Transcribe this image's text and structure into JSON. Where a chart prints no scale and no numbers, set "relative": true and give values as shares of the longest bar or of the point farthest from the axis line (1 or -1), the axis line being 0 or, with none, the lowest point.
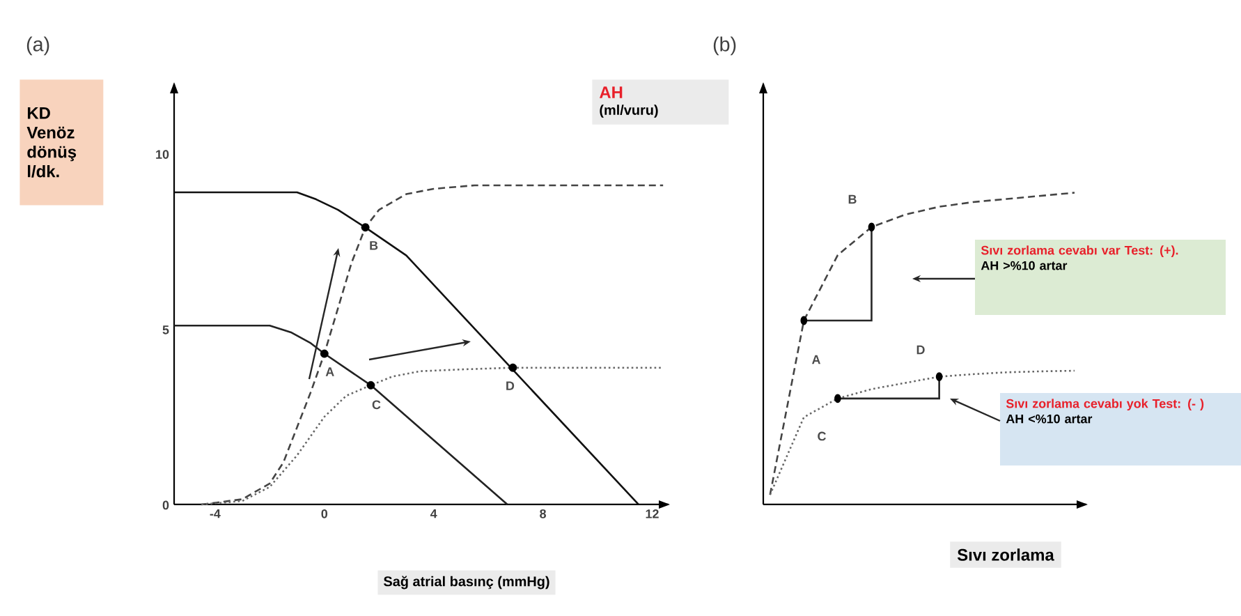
{
  "chart_data": [
    {
      "type": "line",
      "title": "(a)",
      "xlabel": "Sağ atrial basınç (mmHg)",
      "ylabel": "KD Venöz dönüş l/dk.",
      "xlim": [
        -5.5,
        12.6
      ],
      "ylim": [
        0,
        12
      ],
      "xticks": [
        -4,
        0,
        4,
        8,
        12
      ],
      "yticks": [
        0,
        5,
        10
      ],
      "series": [
        {
          "color": "#222222",
          "line_style": "solid",
          "marker": "none",
          "x": [
            -5.5,
            -2,
            -1.2,
            -0.5,
            0,
            1.7,
            6.7
          ],
          "values": [
            5.1,
            5.1,
            4.9,
            4.6,
            4.3,
            3.4,
            0
          ]
        },
        {
          "color": "#111111",
          "line_style": "solid",
          "marker": "none",
          "x": [
            -5.5,
            -1,
            -0.3,
            0.5,
            1.5,
            3,
            11.5
          ],
          "values": [
            8.9,
            8.9,
            8.7,
            8.4,
            7.9,
            7.1,
            0
          ]
        },
        {
          "color": "#444444",
          "line_style": "dashed",
          "marker": "none",
          "x": [
            -4.5,
            -3,
            -2,
            -1.5,
            -1,
            -0.5,
            0,
            0.5,
            1,
            1.5,
            2,
            3,
            4,
            5.5,
            12.4
          ],
          "values": [
            0,
            0.15,
            0.6,
            1.2,
            2.2,
            3.2,
            4.3,
            5.6,
            6.9,
            7.9,
            8.4,
            8.85,
            9.0,
            9.1,
            9.1
          ]
        },
        {
          "color": "#666666",
          "line_style": "dotted",
          "marker": "none",
          "x": [
            -4.5,
            -3,
            -2,
            -1,
            0,
            0.8,
            1.7,
            2.5,
            3.5,
            5,
            6.9,
            12.4
          ],
          "values": [
            0,
            0.1,
            0.5,
            1.4,
            2.5,
            3.1,
            3.4,
            3.65,
            3.8,
            3.85,
            3.9,
            3.9
          ]
        },
        {
          "type": "scatter",
          "color": "#000000",
          "marker": "circle",
          "x": [
            0,
            1.5,
            1.7,
            6.9
          ],
          "values": [
            4.3,
            7.9,
            3.4,
            3.9
          ]
        }
      ],
      "annotations": [
        {
          "text": "A",
          "x": 0,
          "y": 4.3
        },
        {
          "text": "B",
          "x": 1.5,
          "y": 7.9
        },
        {
          "text": "C",
          "x": 1.7,
          "y": 3.4
        },
        {
          "text": "D",
          "x": 6.9,
          "y": 3.9
        }
      ]
    },
    {
      "type": "line",
      "relative": true,
      "title": "(b)",
      "xlabel": "Sıvı zorlama",
      "ylabel": "AH",
      "categories": [
        null,
        null,
        null,
        null,
        null,
        null,
        null,
        null,
        null,
        null
      ],
      "series": [
        {
          "color": "#444444",
          "line_style": "dashed",
          "marker": "none",
          "values": [
            0.031,
            0.59,
            0.8,
            0.89,
            0.93,
            0.955,
            0.97,
            0.98,
            0.99,
            1
          ]
        },
        {
          "color": "#666666",
          "line_style": "dotted",
          "marker": "none",
          "values": [
            0.031,
            0.28,
            0.34,
            0.37,
            0.39,
            0.41,
            0.418,
            0.424,
            0.427,
            0.429
          ]
        }
      ],
      "annotations": [
        "(ml/vuru)",
        "A",
        "B",
        "C",
        "D",
        "Sıvı zorlama cevabı var Test: (+).",
        "AH >%10 artar",
        "Sıvı zorlama cevabı yok Test: (- )",
        "AH <%10 artar"
      ]
    }
  ]
}
